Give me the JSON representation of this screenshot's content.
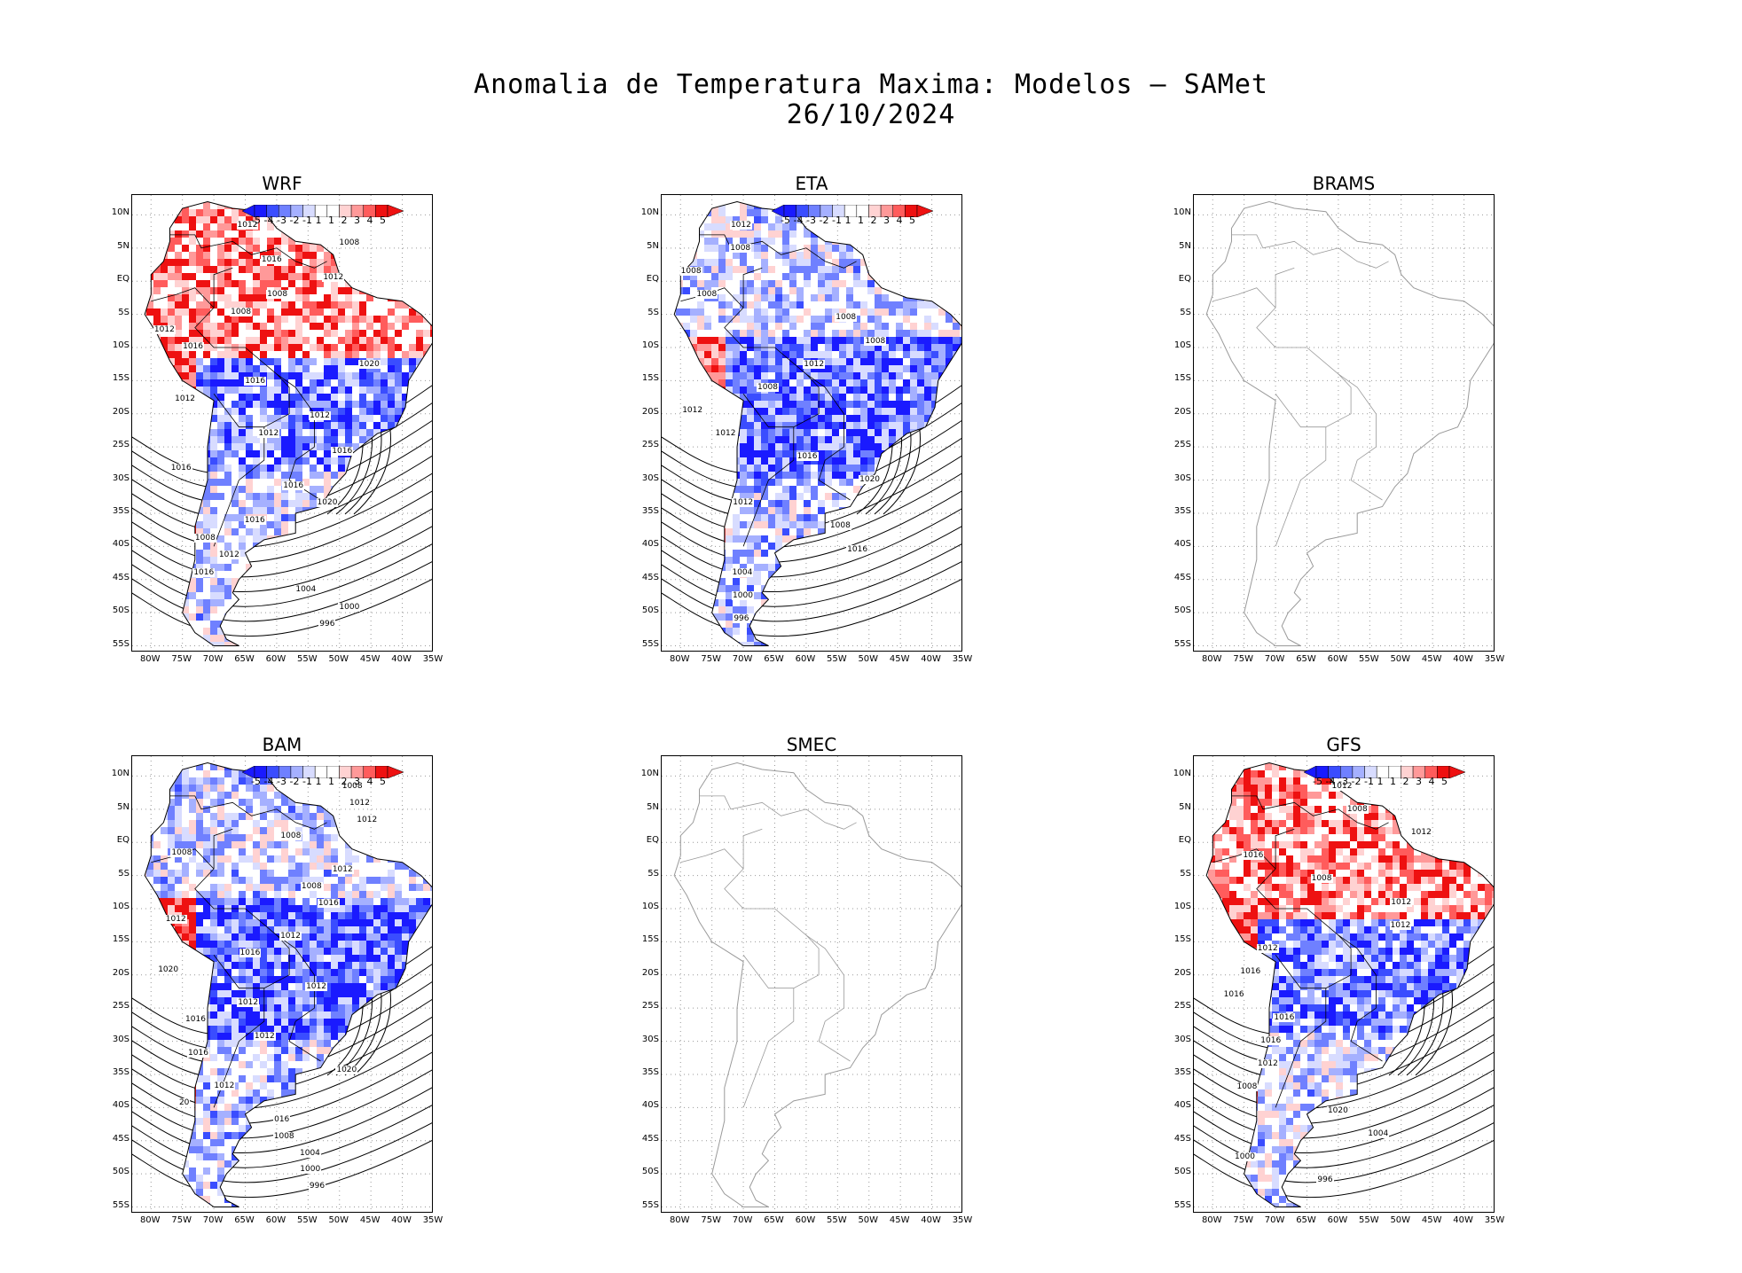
{
  "title": {
    "line1": "Anomalia de Temperatura Maxima: Modelos — SAMet",
    "line2": "26/10/2024"
  },
  "axes": {
    "lat_labels": [
      "10N",
      "5N",
      "EQ",
      "5S",
      "10S",
      "15S",
      "20S",
      "25S",
      "30S",
      "35S",
      "40S",
      "45S",
      "50S",
      "55S"
    ],
    "lon_labels": [
      "80W",
      "75W",
      "70W",
      "65W",
      "60W",
      "55W",
      "50W",
      "45W",
      "40W",
      "35W"
    ]
  },
  "colorbar": {
    "labels": [
      "-5",
      "-4",
      "-3",
      "-2",
      "-1",
      "1",
      "1",
      "2",
      "3",
      "4",
      "5"
    ],
    "colors": [
      "#1a1aff",
      "#3a4dff",
      "#6f80ff",
      "#a5b0ff",
      "#d8dcff",
      "#ffffff",
      "#ffffff",
      "#ffd2d2",
      "#ff9999",
      "#ff5c5c",
      "#ee1111"
    ]
  },
  "panels": [
    {
      "name": "WRF",
      "has_data": true,
      "tint": "mixed-red-north",
      "isobars": [
        "1012",
        "1008",
        "1016",
        "1012",
        "1008",
        "1008",
        "1012",
        "1016",
        "1020",
        "1016",
        "1012",
        "1012",
        "1012",
        "1016",
        "1016",
        "1016",
        "1020",
        "1016",
        "1008",
        "1012",
        "1016",
        "1004",
        "1000",
        "996"
      ]
    },
    {
      "name": "ETA",
      "has_data": true,
      "tint": "mixed-blue",
      "isobars": [
        "1012",
        "1008",
        "1008",
        "1008",
        "1008",
        "1008",
        "1012",
        "1008",
        "1012",
        "1012",
        "1016",
        "1020",
        "1012",
        "1008",
        "1016",
        "1004",
        "1000",
        "996"
      ]
    },
    {
      "name": "BRAMS",
      "has_data": false,
      "isobars": []
    },
    {
      "name": "BAM",
      "has_data": true,
      "tint": "mixed-blue",
      "isobars": [
        "1008",
        "1012",
        "1012",
        "1008",
        "1008",
        "1012",
        "1008",
        "1016",
        "1012",
        "1012",
        "1016",
        "1020",
        "1012",
        "1012",
        "1016",
        "1012",
        "1016",
        "1020",
        "1012",
        "20",
        "016",
        "1008",
        "1004",
        "1000",
        "996"
      ]
    },
    {
      "name": "SMEC",
      "has_data": false,
      "isobars": []
    },
    {
      "name": "GFS",
      "has_data": true,
      "tint": "mixed-red-north",
      "isobars": [
        "1012",
        "1008",
        "1012",
        "1016",
        "1008",
        "1012",
        "1012",
        "1012",
        "1016",
        "1016",
        "1016",
        "1016",
        "1012",
        "1008",
        "1020",
        "1004",
        "1000",
        "996"
      ]
    }
  ]
}
